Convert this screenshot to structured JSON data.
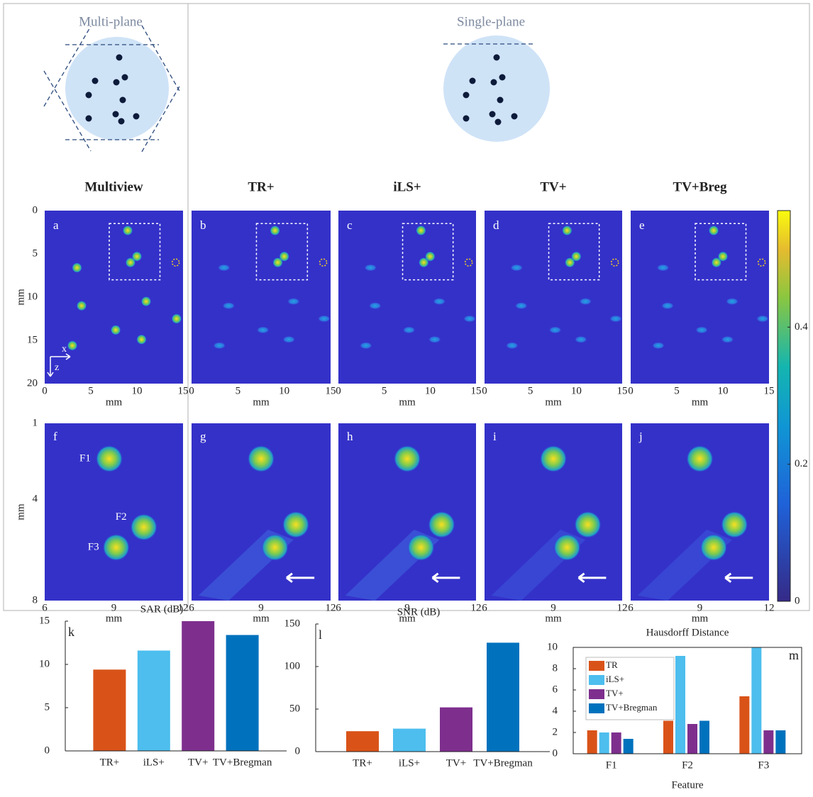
{
  "diagrams": {
    "multi": "Multi-plane",
    "single": "Single-plane"
  },
  "columns": [
    "Multiview",
    "TR+",
    "iLS+",
    "TV+",
    "TV+Breg"
  ],
  "top_letters": [
    "a",
    "b",
    "c",
    "d",
    "e"
  ],
  "bottom_letters": [
    "f",
    "g",
    "h",
    "i",
    "j"
  ],
  "top_axes": {
    "label": "mm",
    "xlim": [
      0,
      15
    ],
    "ylim": [
      0,
      20
    ],
    "xticks": [
      0,
      5,
      10,
      15
    ],
    "yticks": [
      0,
      5,
      10,
      15,
      20
    ]
  },
  "bottom_axes": {
    "label": "mm",
    "xlim": [
      6,
      12
    ],
    "ylim": [
      1,
      8
    ],
    "xticks": [
      6,
      9,
      12
    ],
    "yticks": [
      1,
      4,
      8
    ]
  },
  "features": [
    "F1",
    "F2",
    "F3"
  ],
  "axis_arrows": [
    "x",
    "z"
  ],
  "colorbar": {
    "lim": [
      0,
      0.57
    ],
    "ticks": [
      0,
      0.2,
      0.4
    ]
  },
  "chart_data": [
    {
      "type": "bar",
      "title": "SAR (dB)",
      "label": "k",
      "categories": [
        "TR+",
        "iLS+",
        "TV+",
        "TV+Bregman"
      ],
      "values": [
        9.4,
        11.6,
        15,
        13.4
      ],
      "colors": [
        "#d95319",
        "#4dbeee",
        "#7e2f8e",
        "#0072bd"
      ],
      "ylim": [
        0,
        15
      ],
      "yticks": [
        0,
        5,
        10,
        15
      ]
    },
    {
      "type": "bar",
      "title": "SNR (dB)",
      "label": "l",
      "categories": [
        "TR+",
        "iLS+",
        "TV+",
        "TV+Bregman"
      ],
      "values": [
        24,
        27,
        52,
        128
      ],
      "colors": [
        "#d95319",
        "#4dbeee",
        "#7e2f8e",
        "#0072bd"
      ],
      "ylim": [
        0,
        150
      ],
      "yticks": [
        0,
        50,
        100,
        150
      ]
    },
    {
      "type": "grouped-bar",
      "title": "Hausdorff Distance",
      "label": "m",
      "x_label": "Feature",
      "categories": [
        "F1",
        "F2",
        "F3"
      ],
      "series": [
        {
          "name": "TR",
          "color": "#d95319",
          "values": [
            2.2,
            3.1,
            5.4
          ]
        },
        {
          "name": "iLS+",
          "color": "#4dbeee",
          "values": [
            2.0,
            9.2,
            10
          ]
        },
        {
          "name": "TV+",
          "color": "#7e2f8e",
          "values": [
            2.0,
            2.8,
            2.2
          ]
        },
        {
          "name": "TV+Bregman",
          "color": "#0072bd",
          "values": [
            1.4,
            3.1,
            2.2
          ]
        }
      ],
      "ylim": [
        0,
        10
      ],
      "yticks": [
        0,
        2,
        4,
        6,
        8,
        10
      ],
      "legend": "upper-left"
    }
  ]
}
